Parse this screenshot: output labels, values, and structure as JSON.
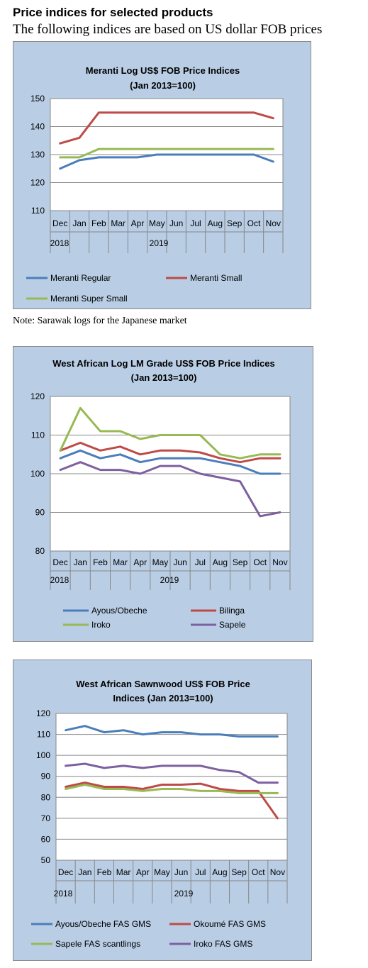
{
  "page": {
    "heading": "Price indices for selected products",
    "subheading": "The following indices are based on US dollar FOB prices",
    "note": "Note: Sarawak logs for the Japanese market"
  },
  "chart_data": [
    {
      "type": "line",
      "title": [
        "Meranti Log US$ FOB Price Indices",
        "(Jan 2013=100)"
      ],
      "categories": [
        "Dec",
        "Jan",
        "Feb",
        "Mar",
        "Apr",
        "May",
        "Jun",
        "Jul",
        "Aug",
        "Sep",
        "Oct",
        "Nov"
      ],
      "year_labels": [
        "2018",
        "2019"
      ],
      "ylim": [
        110,
        150
      ],
      "yticks": [
        110,
        120,
        130,
        140,
        150
      ],
      "grid": true,
      "legend_position": "bottom",
      "series": [
        {
          "name": "Meranti Regular",
          "color": "#4a7ebb",
          "values": [
            125,
            128,
            129,
            129,
            129,
            130,
            130,
            130,
            130,
            130,
            130,
            127.5
          ]
        },
        {
          "name": "Meranti Small",
          "color": "#be4b48",
          "values": [
            134,
            136,
            145,
            145,
            145,
            145,
            145,
            145,
            145,
            145,
            145,
            143
          ]
        },
        {
          "name": "Meranti Super Small",
          "color": "#98b954",
          "values": [
            129,
            129,
            132,
            132,
            132,
            132,
            132,
            132,
            132,
            132,
            132,
            132
          ]
        }
      ]
    },
    {
      "type": "line",
      "title": [
        "West African Log LM Grade US$ FOB Price Indices",
        "(Jan 2013=100)"
      ],
      "categories": [
        "Dec",
        "Jan",
        "Feb",
        "Mar",
        "Apr",
        "May",
        "Jun",
        "Jul",
        "Aug",
        "Sep",
        "Oct",
        "Nov"
      ],
      "year_labels": [
        "2018",
        "2019"
      ],
      "ylim": [
        80,
        120
      ],
      "yticks": [
        80,
        90,
        100,
        110,
        120
      ],
      "grid": true,
      "legend_position": "bottom",
      "series": [
        {
          "name": "Ayous/Obeche",
          "color": "#4a7ebb",
          "values": [
            104,
            106,
            104,
            105,
            103,
            104,
            104,
            104,
            103,
            102,
            100,
            100
          ]
        },
        {
          "name": "Bilinga",
          "color": "#be4b48",
          "values": [
            106,
            108,
            106,
            107,
            105,
            106,
            106,
            105.5,
            104,
            103,
            104,
            104
          ]
        },
        {
          "name": "Iroko",
          "color": "#98b954",
          "values": [
            106,
            117,
            111,
            111,
            109,
            110,
            110,
            110,
            105,
            104,
            105,
            105
          ]
        },
        {
          "name": "Sapele",
          "color": "#7d60a0",
          "values": [
            101,
            103,
            101,
            101,
            100,
            102,
            102,
            100,
            99,
            98,
            89,
            90
          ]
        }
      ]
    },
    {
      "type": "line",
      "title": [
        "West African Sawnwood US$ FOB Price",
        "Indices (Jan 2013=100)"
      ],
      "categories": [
        "Dec",
        "Jan",
        "Feb",
        "Mar",
        "Apr",
        "May",
        "Jun",
        "Jul",
        "Aug",
        "Sep",
        "Oct",
        "Nov"
      ],
      "year_labels": [
        "2018",
        "2019"
      ],
      "ylim": [
        50,
        120
      ],
      "yticks": [
        50,
        60,
        70,
        80,
        90,
        100,
        110,
        120
      ],
      "grid": true,
      "legend_position": "bottom",
      "series": [
        {
          "name": "Ayous/Obeche FAS GMS",
          "color": "#4a7ebb",
          "values": [
            112,
            114,
            111,
            112,
            110,
            111,
            111,
            110,
            110,
            109,
            109,
            109
          ]
        },
        {
          "name": "Okoumé FAS GMS",
          "color": "#be4b48",
          "values": [
            85,
            87,
            85,
            85,
            84,
            86,
            86,
            86.5,
            84,
            83,
            83,
            70
          ]
        },
        {
          "name": "Sapele FAS scantlings",
          "color": "#98b954",
          "values": [
            84,
            86,
            84,
            84,
            83,
            84,
            84,
            83,
            83,
            82,
            82,
            82
          ]
        },
        {
          "name": "Iroko FAS GMS",
          "color": "#7d60a0",
          "values": [
            95,
            96,
            94,
            95,
            94,
            95,
            95,
            95,
            93,
            92,
            87,
            87
          ]
        }
      ]
    }
  ]
}
